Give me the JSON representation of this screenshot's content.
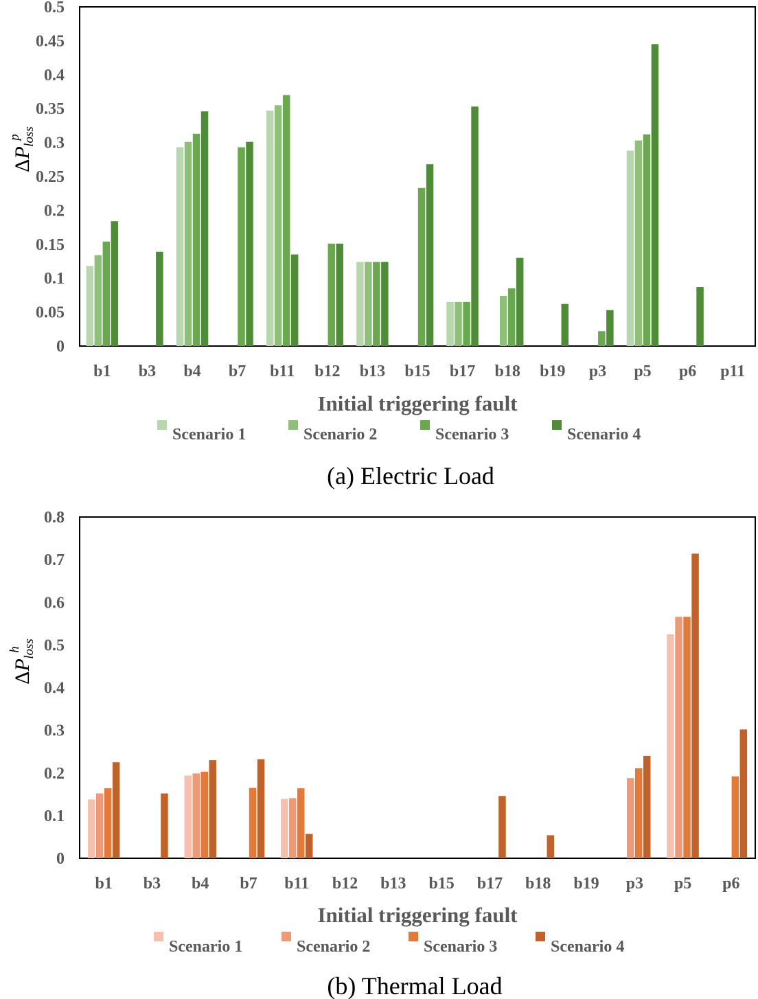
{
  "chart_data": [
    {
      "id": "a",
      "type": "bar",
      "title": "(a) Electric Load",
      "xlabel": "Initial triggering fault",
      "ylabel": {
        "base": "ΔP",
        "sup": "p",
        "sub": "loss"
      },
      "ylim": [
        0,
        0.5
      ],
      "yticks": [
        "0",
        "0.05",
        "0.1",
        "0.15",
        "0.2",
        "0.25",
        "0.3",
        "0.35",
        "0.4",
        "0.45",
        "0.5"
      ],
      "categories": [
        "b1",
        "b3",
        "b4",
        "b7",
        "b11",
        "b12",
        "b13",
        "b15",
        "b17",
        "b18",
        "b19",
        "p3",
        "p5",
        "p6",
        "p11"
      ],
      "series": [
        {
          "name": "Scenario 1",
          "color": "#b9d7ae",
          "values": [
            0.118,
            0,
            0.293,
            0,
            0.347,
            0,
            0.124,
            0,
            0.065,
            0,
            0,
            0,
            0.288,
            0,
            0
          ]
        },
        {
          "name": "Scenario 2",
          "color": "#8fc07a",
          "values": [
            0.134,
            0,
            0.301,
            0,
            0.355,
            0,
            0.124,
            0,
            0.065,
            0.074,
            0,
            0,
            0.303,
            0,
            0
          ]
        },
        {
          "name": "Scenario 3",
          "color": "#6aa84f",
          "values": [
            0.154,
            0,
            0.313,
            0.293,
            0.37,
            0.151,
            0.124,
            0.233,
            0.065,
            0.085,
            0,
            0.022,
            0.312,
            0,
            0
          ]
        },
        {
          "name": "Scenario 4",
          "color": "#4e8c38",
          "values": [
            0.184,
            0.139,
            0.346,
            0.301,
            0.135,
            0.151,
            0.124,
            0.268,
            0.353,
            0.13,
            0.062,
            0.053,
            0.445,
            0.087,
            0
          ]
        }
      ]
    },
    {
      "id": "b",
      "type": "bar",
      "title": "(b) Thermal Load",
      "xlabel": "Initial triggering fault",
      "ylabel": {
        "base": "ΔP",
        "sup": "h",
        "sub": "loss"
      },
      "ylim": [
        0,
        0.8
      ],
      "yticks": [
        "0",
        "0.1",
        "0.2",
        "0.3",
        "0.4",
        "0.5",
        "0.6",
        "0.7",
        "0.8"
      ],
      "categories": [
        "b1",
        "b3",
        "b4",
        "b7",
        "b11",
        "b12",
        "b13",
        "b15",
        "b17",
        "b18",
        "b19",
        "p3",
        "p5",
        "p6"
      ],
      "series": [
        {
          "name": "Scenario 1",
          "color": "#f4c1ae",
          "values": [
            0.138,
            0,
            0.194,
            0,
            0.139,
            0,
            0,
            0,
            0,
            0,
            0,
            0,
            0.525,
            0
          ]
        },
        {
          "name": "Scenario 2",
          "color": "#ee9a78",
          "values": [
            0.152,
            0,
            0.199,
            0,
            0.141,
            0,
            0,
            0,
            0,
            0,
            0,
            0.188,
            0.566,
            0
          ]
        },
        {
          "name": "Scenario 3",
          "color": "#e47a3a",
          "values": [
            0.164,
            0,
            0.203,
            0.165,
            0.164,
            0,
            0,
            0,
            0,
            0,
            0,
            0.211,
            0.566,
            0.192
          ]
        },
        {
          "name": "Scenario 4",
          "color": "#c0622a",
          "values": [
            0.225,
            0.152,
            0.23,
            0.232,
            0.057,
            0,
            0,
            0,
            0.146,
            0.054,
            0,
            0.24,
            0.714,
            0.302
          ]
        }
      ]
    }
  ]
}
